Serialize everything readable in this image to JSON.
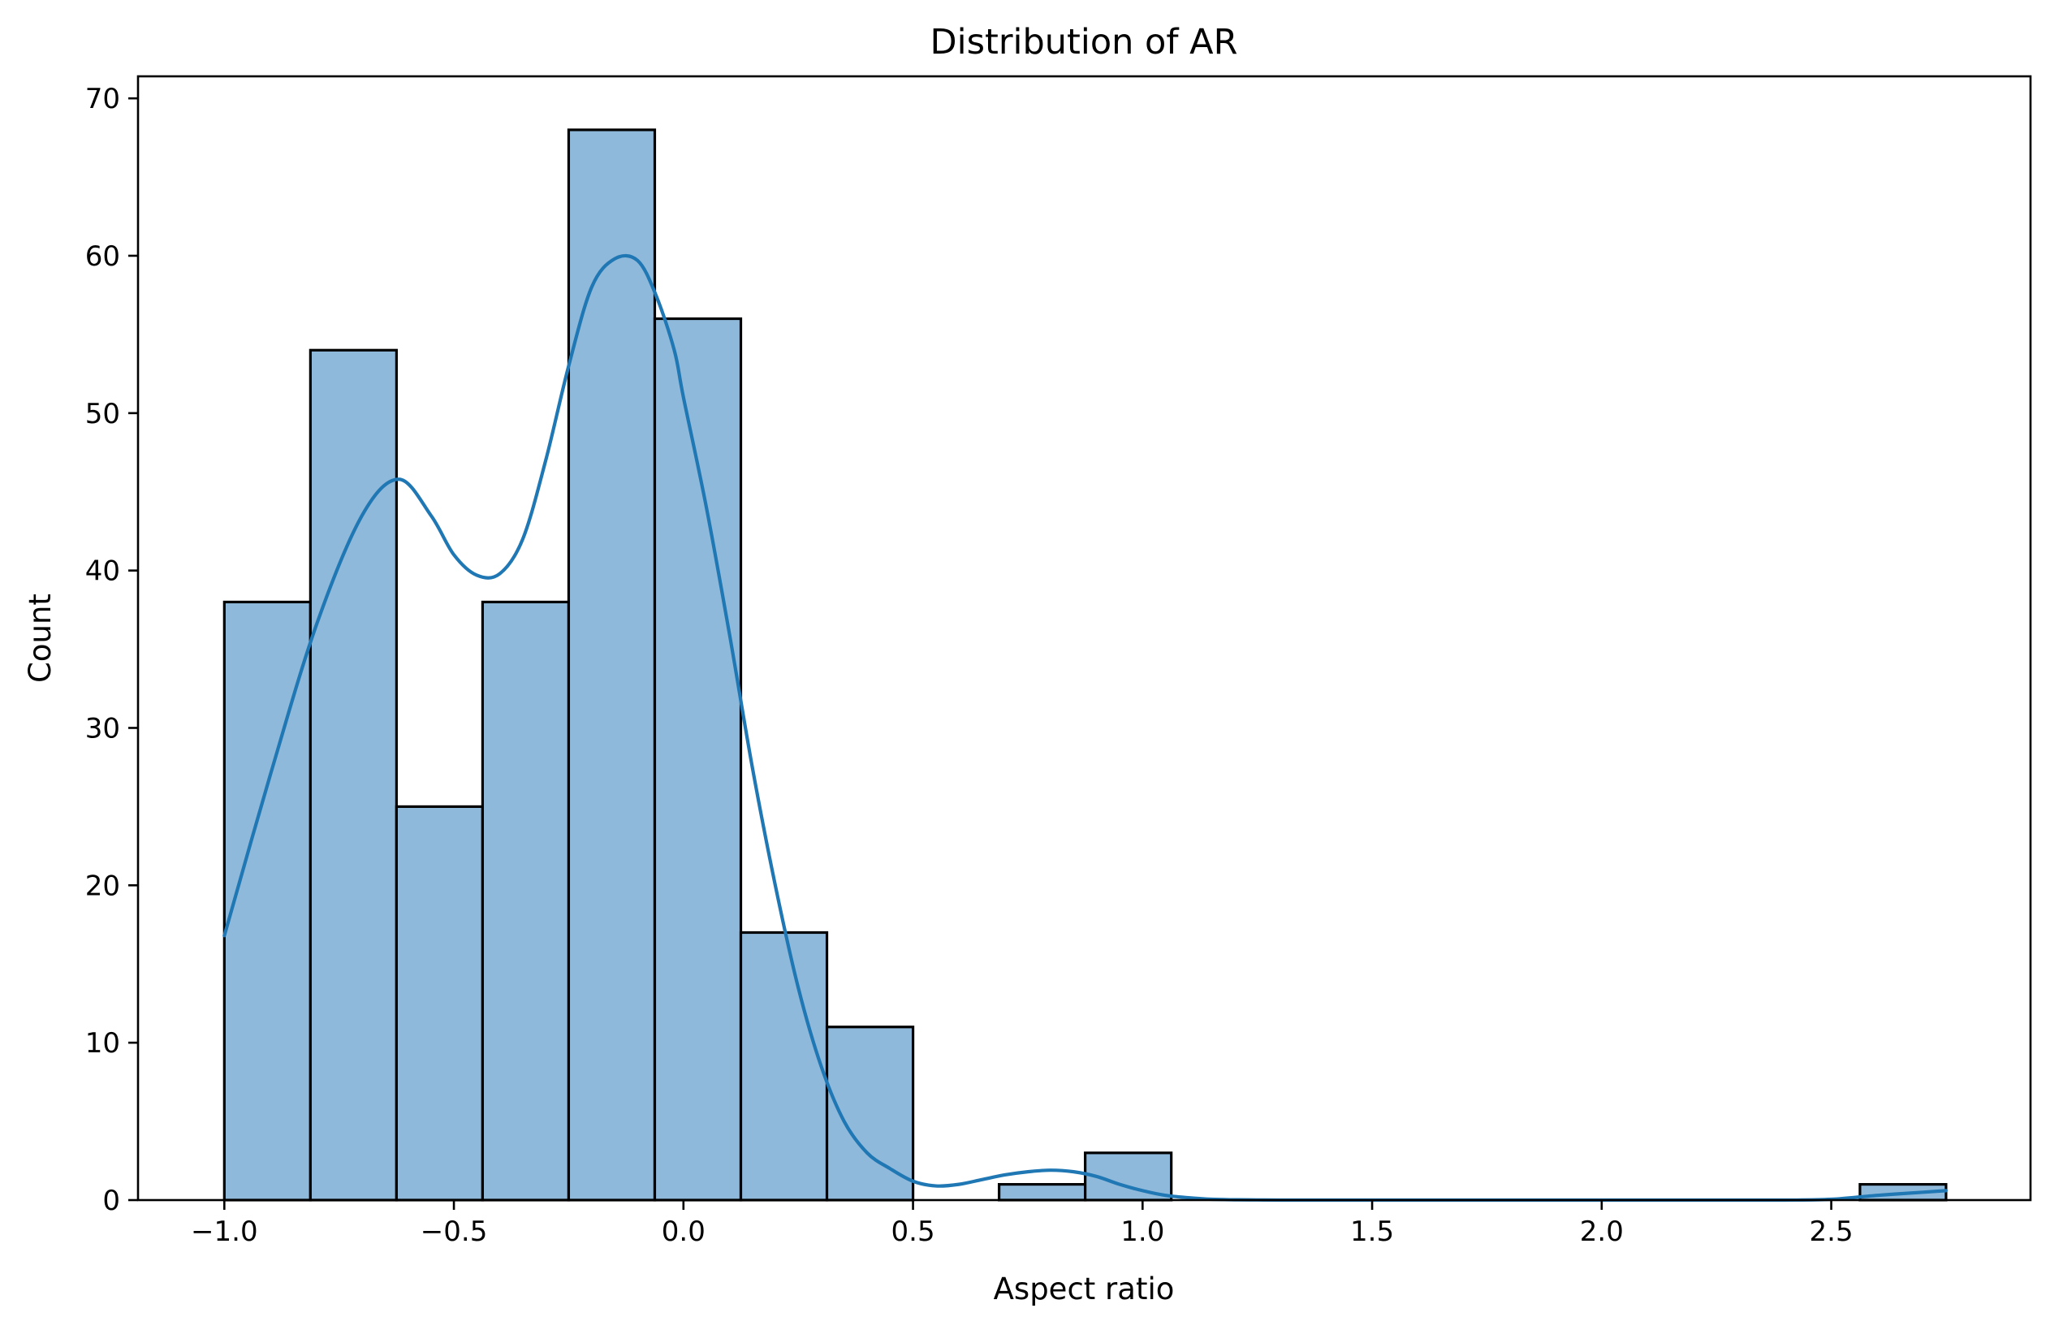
{
  "chart_data": {
    "type": "bar",
    "title": "Distribution of AR",
    "xlabel": "Aspect ratio",
    "ylabel": "Count",
    "xlim": [
      -1.188,
      2.934
    ],
    "ylim": [
      0,
      71.4
    ],
    "xticks": [
      {
        "value": -1.0,
        "label": "−1.0"
      },
      {
        "value": -0.5,
        "label": "−0.5"
      },
      {
        "value": 0.0,
        "label": "0.0"
      },
      {
        "value": 0.5,
        "label": "0.5"
      },
      {
        "value": 1.0,
        "label": "1.0"
      },
      {
        "value": 1.5,
        "label": "1.5"
      },
      {
        "value": 2.0,
        "label": "2.0"
      },
      {
        "value": 2.5,
        "label": "2.5"
      }
    ],
    "yticks": [
      {
        "value": 0,
        "label": "0"
      },
      {
        "value": 10,
        "label": "10"
      },
      {
        "value": 20,
        "label": "20"
      },
      {
        "value": 30,
        "label": "30"
      },
      {
        "value": 40,
        "label": "40"
      },
      {
        "value": 50,
        "label": "50"
      },
      {
        "value": 60,
        "label": "60"
      },
      {
        "value": 70,
        "label": "70"
      }
    ],
    "bin_edges": [
      -1.0,
      -0.8125,
      -0.625,
      -0.4375,
      -0.25,
      -0.0625,
      0.125,
      0.3125,
      0.5,
      0.6875,
      0.875,
      1.0625,
      1.25,
      1.4375,
      1.625,
      1.8125,
      2.0,
      2.1875,
      2.375,
      2.5625,
      2.75
    ],
    "counts": [
      38,
      54,
      25,
      38,
      68,
      56,
      17,
      11,
      0,
      1,
      3,
      0,
      0,
      0,
      0,
      0,
      0,
      0,
      0,
      1
    ],
    "kde": {
      "x": [
        -1.0,
        -0.9,
        -0.8,
        -0.7,
        -0.62,
        -0.55,
        -0.5,
        -0.45,
        -0.4,
        -0.35,
        -0.3,
        -0.25,
        -0.2,
        -0.15,
        -0.1,
        -0.06,
        -0.02,
        0.0,
        0.05,
        0.1,
        0.15,
        0.2,
        0.25,
        0.3,
        0.35,
        0.4,
        0.45,
        0.5,
        0.55,
        0.6,
        0.65,
        0.7,
        0.75,
        0.8,
        0.85,
        0.9,
        0.95,
        1.0,
        1.05,
        1.1,
        1.15,
        1.2,
        1.25,
        1.3,
        1.4,
        1.5,
        1.7,
        2.0,
        2.2,
        2.4,
        2.5,
        2.6,
        2.7,
        2.75
      ],
      "y": [
        16.8,
        27.0,
        36.5,
        43.5,
        45.8,
        43.5,
        41.0,
        39.7,
        39.8,
        42.0,
        47.0,
        53.0,
        58.0,
        59.8,
        59.7,
        57.5,
        54.0,
        51.0,
        44.0,
        36.0,
        27.5,
        20.0,
        13.5,
        8.5,
        5.0,
        3.0,
        2.0,
        1.2,
        0.9,
        1.0,
        1.3,
        1.6,
        1.8,
        1.9,
        1.8,
        1.5,
        1.0,
        0.6,
        0.3,
        0.15,
        0.05,
        0.02,
        0.01,
        0.0,
        0.0,
        0.0,
        0.0,
        0.0,
        0.0,
        0.0,
        0.05,
        0.3,
        0.5,
        0.6
      ]
    },
    "grid": false,
    "legend": false
  },
  "colors": {
    "bar_fill": "#8fb9da",
    "kde_line": "#1f77b4",
    "edge": "#000000"
  }
}
